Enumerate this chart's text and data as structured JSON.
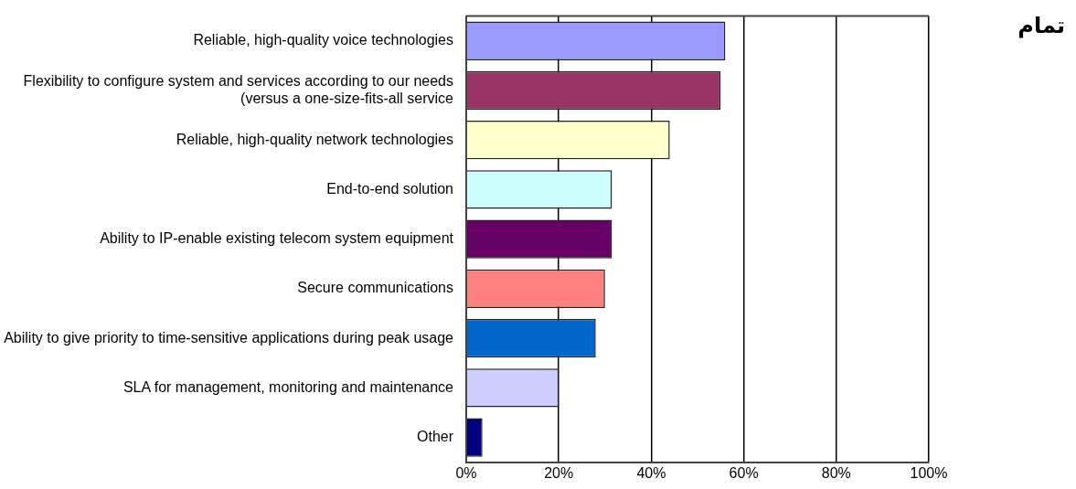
{
  "chart_data": {
    "type": "bar",
    "orientation": "horizontal",
    "categories": [
      "Reliable, high-quality voice technologies",
      "Flexibility to configure system and services according to our needs (versus a one-size-fits-all service",
      "Reliable, high-quality network technologies",
      "End-to-end solution",
      "Ability to IP-enable existing telecom system equipment",
      "Secure communications",
      "Ability to give priority to time-sensitive applications during peak usage",
      "SLA for management, monitoring and maintenance",
      "Other"
    ],
    "values": [
      56,
      55,
      44,
      31.5,
      31.5,
      30,
      28,
      20,
      3.5
    ],
    "colors": [
      "#9999ff",
      "#993366",
      "#ffffcc",
      "#ccffff",
      "#660066",
      "#ff8080",
      "#0066cc",
      "#ccccff",
      "#000080"
    ],
    "xlim": [
      0,
      100
    ],
    "xticks": [
      {
        "value": 0,
        "label": "0%"
      },
      {
        "value": 20,
        "label": "20%"
      },
      {
        "value": 40,
        "label": "40%"
      },
      {
        "value": 60,
        "label": "60%"
      },
      {
        "value": 80,
        "label": "80%"
      },
      {
        "value": 100,
        "label": "100%"
      }
    ],
    "grid": "x",
    "legend": false,
    "annotations": [
      "تمام"
    ]
  }
}
